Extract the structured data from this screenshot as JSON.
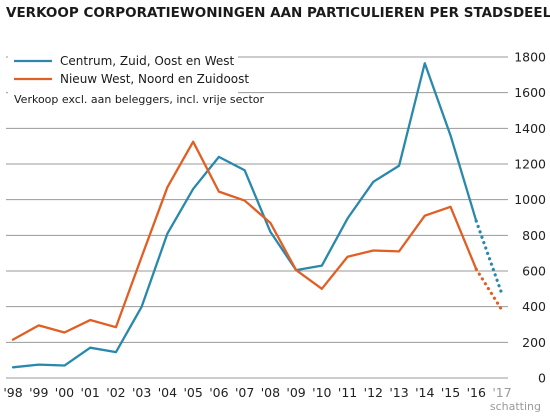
{
  "chart_data": {
    "type": "line",
    "title": "VERKOOP CORPORATIEWONINGEN AAN PARTICULIEREN PER STADSDEEL",
    "subtitle": "Verkoop excl. aan beleggers, incl. vrije sector",
    "source": "schatting",
    "x": [
      "'98",
      "'99",
      "'00",
      "'01",
      "'02",
      "'03",
      "'04",
      "'05",
      "'06",
      "'07",
      "'08",
      "'09",
      "'10",
      "'11",
      "'12",
      "'13",
      "'14",
      "'15",
      "'16",
      "'17"
    ],
    "estimated_from": "'16",
    "estimated_to": "'17",
    "yticks": [
      0,
      200,
      400,
      600,
      800,
      1000,
      1200,
      1400,
      1600,
      1800
    ],
    "ylim": [
      0,
      1850
    ],
    "grid": true,
    "legend_position": "top-left",
    "series": [
      {
        "name": "Centrum, Zuid, Oost en West",
        "color": "#2a88ad",
        "values": [
          60,
          75,
          70,
          170,
          145,
          400,
          810,
          1060,
          1240,
          1165,
          820,
          605,
          630,
          895,
          1100,
          1190,
          1765,
          1360,
          880,
          470
        ]
      },
      {
        "name": "Nieuw West, Noord en Zuidoost",
        "color": "#e15f25",
        "values": [
          215,
          295,
          255,
          325,
          285,
          680,
          1070,
          1325,
          1045,
          995,
          870,
          605,
          500,
          680,
          715,
          710,
          910,
          960,
          610,
          380
        ]
      }
    ]
  }
}
